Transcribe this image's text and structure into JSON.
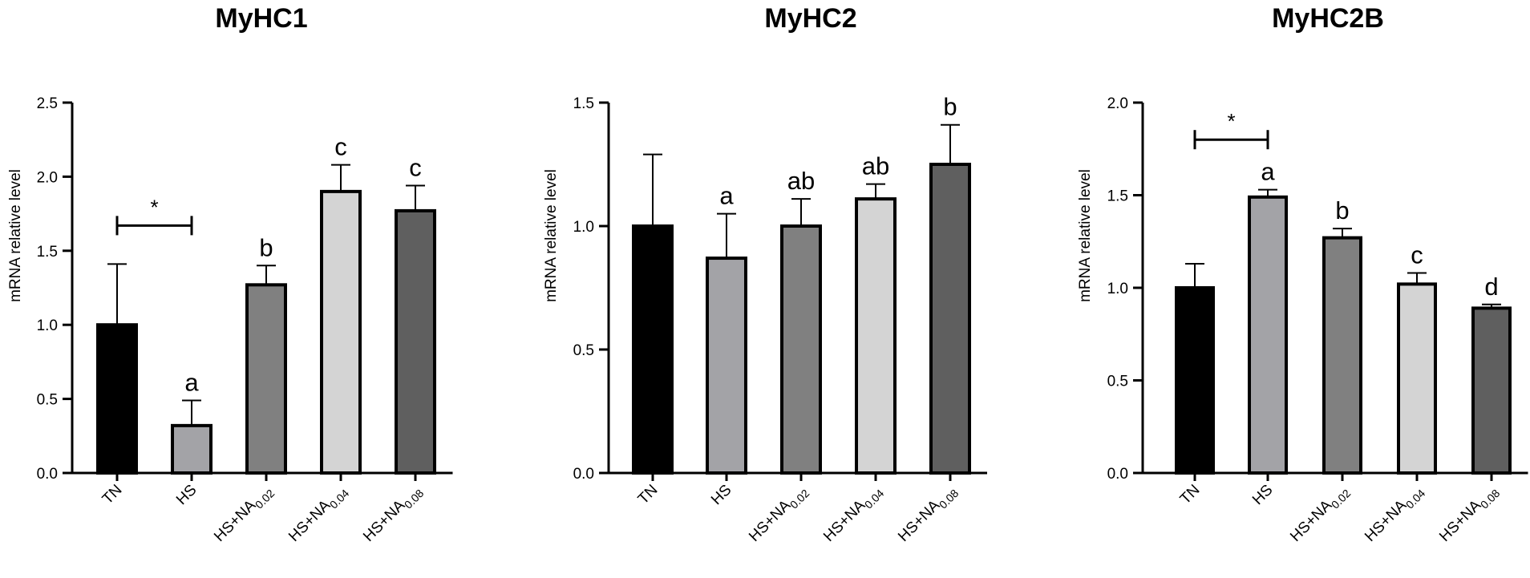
{
  "chart_data": [
    {
      "type": "bar",
      "title": "MyHC1",
      "ylabel": "mRNA relative level",
      "xlabel": "",
      "ylim": [
        0,
        2.5
      ],
      "yticks": [
        0.0,
        0.5,
        1.0,
        1.5,
        2.0,
        2.5
      ],
      "ytick_labels": [
        "0.0",
        "0.5",
        "1.0",
        "1.5",
        "2.0",
        "2.5"
      ],
      "categories": [
        {
          "base": "TN",
          "sub": ""
        },
        {
          "base": "HS",
          "sub": ""
        },
        {
          "base": "HS+NA",
          "sub": "0.02"
        },
        {
          "base": "HS+NA",
          "sub": "0.04"
        },
        {
          "base": "HS+NA",
          "sub": "0.08"
        }
      ],
      "values": [
        1.0,
        0.32,
        1.27,
        1.9,
        1.77
      ],
      "errors": [
        0.41,
        0.17,
        0.13,
        0.18,
        0.17
      ],
      "colors": [
        "#000000",
        "#a3a3a7",
        "#808080",
        "#d4d4d4",
        "#5f5f5f"
      ],
      "letters": [
        "",
        "a",
        "b",
        "c",
        "c"
      ],
      "bracket": {
        "from": 0,
        "to": 1,
        "y": 1.67,
        "label": "*"
      }
    },
    {
      "type": "bar",
      "title": "MyHC2",
      "ylabel": "mRNA relative level",
      "xlabel": "",
      "ylim": [
        0,
        1.5
      ],
      "yticks": [
        0.0,
        0.5,
        1.0,
        1.5
      ],
      "ytick_labels": [
        "0.0",
        "0.5",
        "1.0",
        "1.5"
      ],
      "categories": [
        {
          "base": "TN",
          "sub": ""
        },
        {
          "base": "HS",
          "sub": ""
        },
        {
          "base": "HS+NA",
          "sub": "0.02"
        },
        {
          "base": "HS+NA",
          "sub": "0.04"
        },
        {
          "base": "HS+NA",
          "sub": "0.08"
        }
      ],
      "values": [
        1.0,
        0.87,
        1.0,
        1.11,
        1.25
      ],
      "errors": [
        0.29,
        0.18,
        0.11,
        0.06,
        0.16
      ],
      "colors": [
        "#000000",
        "#a3a3a7",
        "#808080",
        "#d4d4d4",
        "#5f5f5f"
      ],
      "letters": [
        "",
        "a",
        "ab",
        "ab",
        "b"
      ]
    },
    {
      "type": "bar",
      "title": "MyHC2B",
      "ylabel": "mRNA relative level",
      "xlabel": "",
      "ylim": [
        0,
        2.0
      ],
      "yticks": [
        0.0,
        0.5,
        1.0,
        1.5,
        2.0
      ],
      "ytick_labels": [
        "0.0",
        "0.5",
        "1.0",
        "1.5",
        "2.0"
      ],
      "categories": [
        {
          "base": "TN",
          "sub": ""
        },
        {
          "base": "HS",
          "sub": ""
        },
        {
          "base": "HS+NA",
          "sub": "0.02"
        },
        {
          "base": "HS+NA",
          "sub": "0.04"
        },
        {
          "base": "HS+NA",
          "sub": "0.08"
        }
      ],
      "values": [
        1.0,
        1.49,
        1.27,
        1.02,
        0.89
      ],
      "errors": [
        0.13,
        0.04,
        0.05,
        0.06,
        0.02
      ],
      "colors": [
        "#000000",
        "#a3a3a7",
        "#808080",
        "#d4d4d4",
        "#5f5f5f"
      ],
      "letters": [
        "",
        "a",
        "b",
        "c",
        "d"
      ],
      "bracket": {
        "from": 0,
        "to": 1,
        "y": 1.8,
        "label": "*"
      }
    }
  ]
}
